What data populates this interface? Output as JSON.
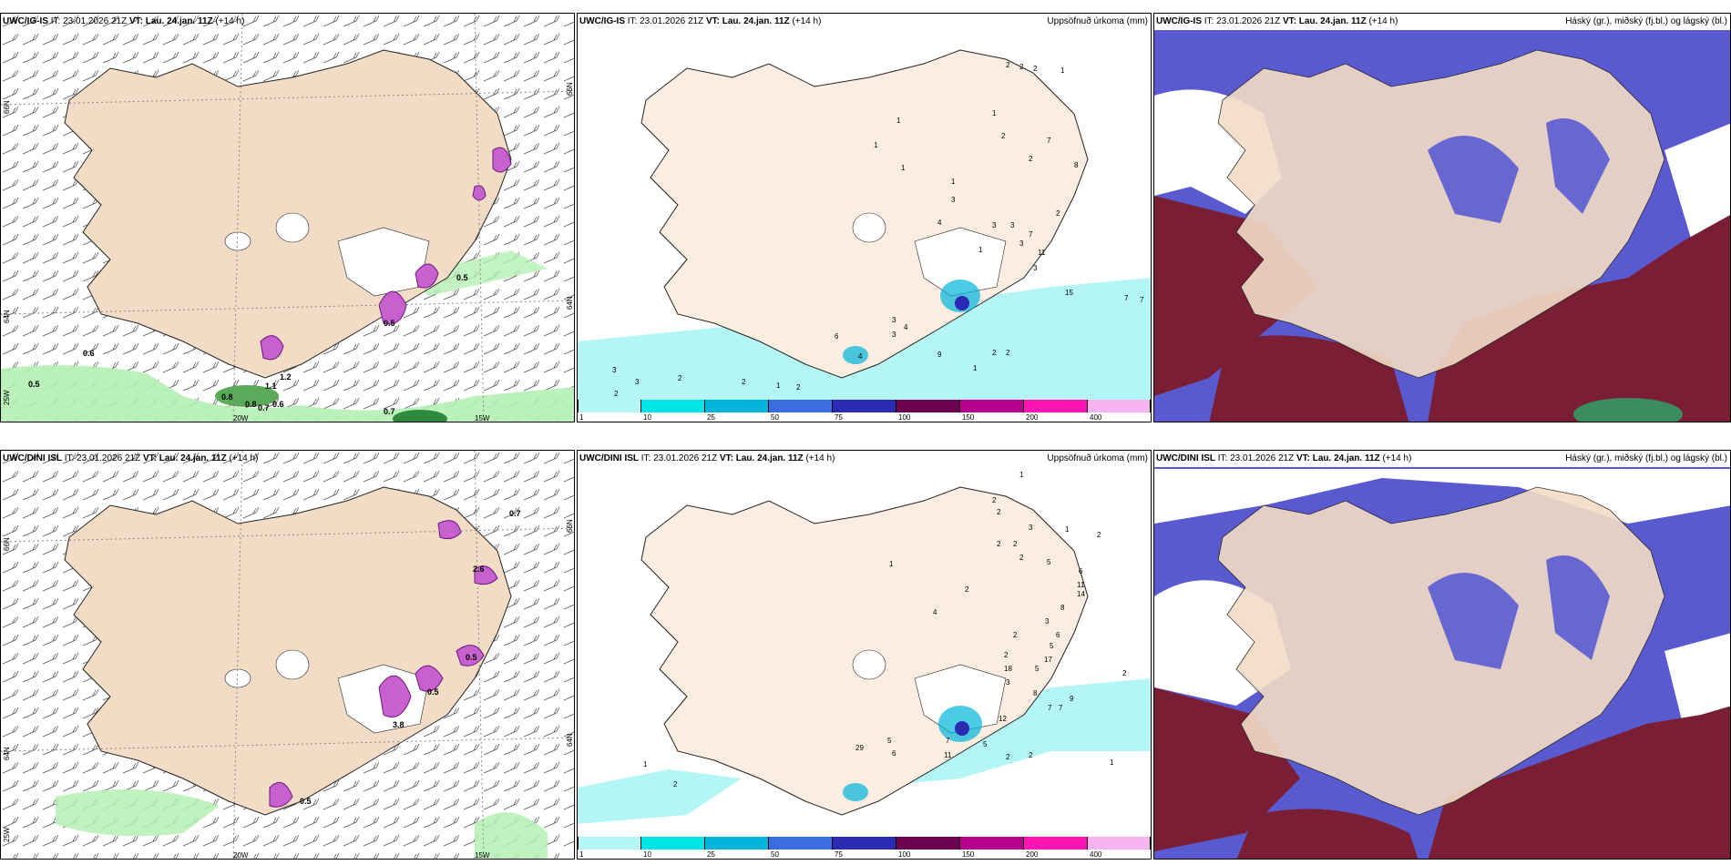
{
  "rows": [
    {
      "model": "UWC/IG-IS",
      "it_label": "IT:",
      "it_value": "23.01.2026 21Z",
      "vt_label": "VT:",
      "vt_value": "Lau. 24.jan. 11Z",
      "lead": "(+14 h)",
      "precip_title": "Uppsöfnuð úrkoma (mm)",
      "cloud_title": "Háský (gr.), miðský (fj.bl.) og lágský (bl.)",
      "lon_labels": [
        "20W",
        "15W"
      ],
      "lat_labels_left": [
        "66N",
        "64N",
        "25W"
      ],
      "lat_labels_right": [
        "66N",
        "64N"
      ],
      "wind_values": [
        "0.6",
        "0.5",
        "0.5",
        "0.5",
        "1.1",
        "1.2",
        "0.8",
        "0.8",
        "0.7",
        "0.6",
        "0.7"
      ],
      "precip_values": [
        "1",
        "1",
        "1",
        "1",
        "1",
        "2",
        "2",
        "2",
        "1",
        "2",
        "7",
        "2",
        "8",
        "3",
        "3",
        "4",
        "3",
        "3",
        "7",
        "2",
        "11",
        "3",
        "1",
        "15",
        "7",
        "7",
        "3",
        "3",
        "4",
        "6",
        "4",
        "9",
        "2",
        "2",
        "1",
        "3",
        "3",
        "2",
        "2",
        "1",
        "2",
        "2"
      ]
    },
    {
      "model": "UWC/DINI ISL",
      "it_label": "IT:",
      "it_value": "23.01.2026 21Z",
      "vt_label": "VT:",
      "vt_value": "Lau. 24.jan. 11Z",
      "lead": "(+14 h)",
      "precip_title": "Uppsöfnuð úrkoma (mm)",
      "cloud_title": "Háský (gr.), miðský (fj.bl.) og lágský (bl.)",
      "lon_labels": [
        "20W",
        "15W"
      ],
      "lat_labels_left": [
        "66N",
        "64N",
        "25W"
      ],
      "lat_labels_right": [
        "66N",
        "64N"
      ],
      "wind_values": [
        "0.7",
        "2.6",
        "0.5",
        "0.5",
        "3.8",
        "0.5"
      ],
      "precip_values": [
        "1",
        "2",
        "2",
        "3",
        "1",
        "2",
        "2",
        "2",
        "1",
        "2",
        "5",
        "6",
        "11",
        "14",
        "2",
        "8",
        "3",
        "4",
        "6",
        "5",
        "2",
        "2",
        "17",
        "18",
        "5",
        "3",
        "8",
        "9",
        "7",
        "7",
        "12",
        "5",
        "7",
        "11",
        "2",
        "2",
        "1",
        "29",
        "5",
        "6",
        "1",
        "2",
        "2"
      ]
    }
  ],
  "legend": {
    "labels": [
      "1",
      "10",
      "25",
      "50",
      "75",
      "100",
      "150",
      "200",
      "400"
    ],
    "colors": [
      "#b4f5f5",
      "#00e6e6",
      "#00b4dc",
      "#3a6ee0",
      "#2a2ab4",
      "#6e0050",
      "#b4008c",
      "#ff14b4",
      "#f5b4f0"
    ]
  },
  "colors": {
    "land": "#f2dcc6",
    "land_precip": "#fbeee0",
    "sea": "#ffffff",
    "green_light": "#b4f0b4",
    "green_dark": "#2e8b3e",
    "magenta": "#c860d0",
    "cyan_light": "#b4f5f5",
    "high_cloud": "#7a1e36",
    "mid_cloud": "#5a5ad0",
    "low_cloud_white": "#ffffff"
  }
}
